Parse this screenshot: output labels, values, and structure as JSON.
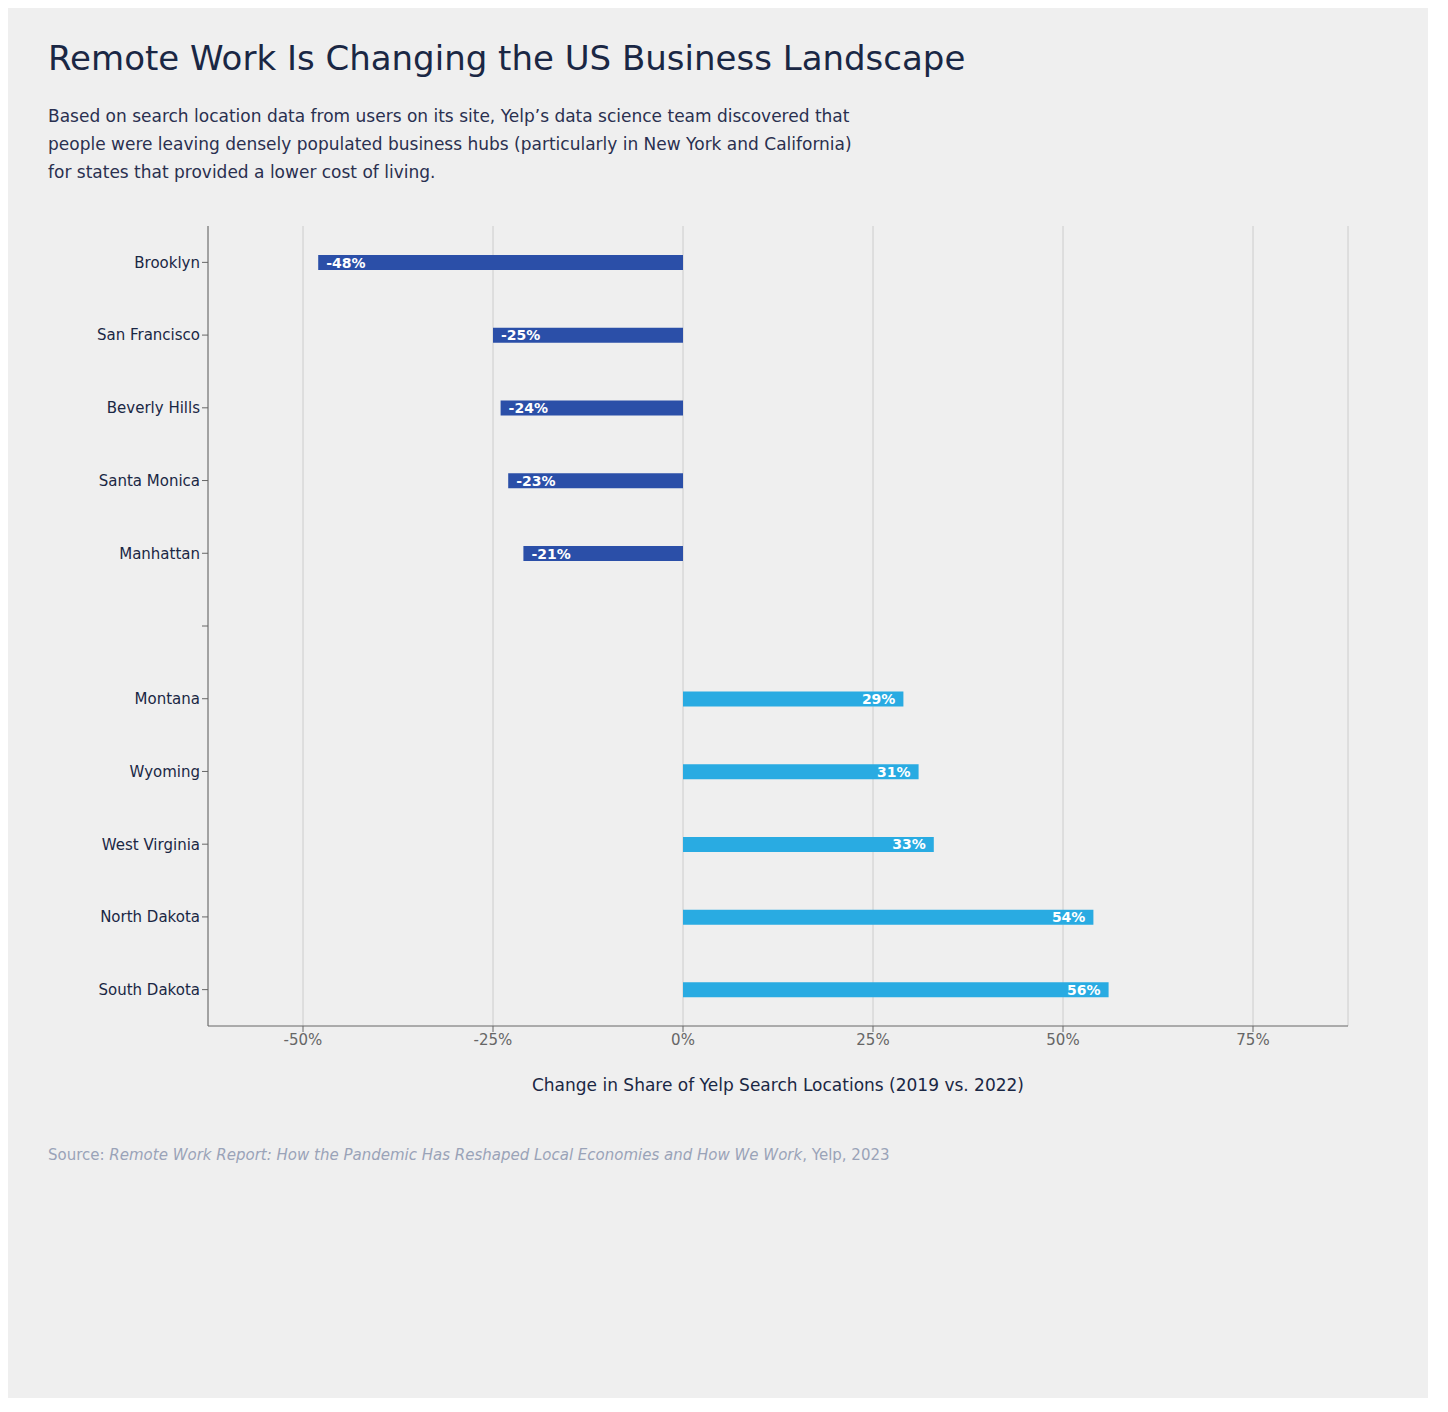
{
  "chart_data": {
    "type": "bar",
    "orientation": "horizontal",
    "title": "Remote Work Is Changing the US Business Landscape",
    "subtitle": "Based on search location data from users on its site, Yelp’s data science team discovered that\npeople were leaving densely populated business hubs (particularly in New York and California)\nfor states that provided a lower cost of living.",
    "xlabel": "Change in Share of Yelp Search Locations (2019 vs. 2022)",
    "annotations": [
      "Source: ",
      "Remote Work Report: How the Pandemic Has Reshaped Local Economies and How We Work",
      ", Yelp, 2023"
    ],
    "categories": [
      "Brooklyn",
      "San Francisco",
      "Beverly Hills",
      "Santa Monica",
      "Manhattan",
      null,
      "Montana",
      "Wyoming",
      "West Virginia",
      "North Dakota",
      "South Dakota"
    ],
    "values": [
      -48,
      -25,
      -24,
      -23,
      -21,
      null,
      29,
      31,
      33,
      54,
      56
    ],
    "value_labels": [
      "-48%",
      "-25%",
      "-24%",
      "-23%",
      "-21%",
      null,
      "29%",
      "31%",
      "33%",
      "54%",
      "56%"
    ],
    "data_labels": true,
    "colors": [
      "#2B4FA8",
      "#2B4FA8",
      "#2B4FA8",
      "#2B4FA8",
      "#2B4FA8",
      null,
      "#29ABE2",
      "#29ABE2",
      "#29ABE2",
      "#29ABE2",
      "#29ABE2"
    ],
    "xlim": [
      -62.5,
      87.5
    ],
    "xticks": [
      {
        "value": -50,
        "label": "-50%"
      },
      {
        "value": -25,
        "label": "-25%"
      },
      {
        "value": 0,
        "label": "0%"
      },
      {
        "value": 25,
        "label": "25%"
      },
      {
        "value": 50,
        "label": "50%"
      },
      {
        "value": 75,
        "label": "75%"
      }
    ],
    "grid": true
  }
}
